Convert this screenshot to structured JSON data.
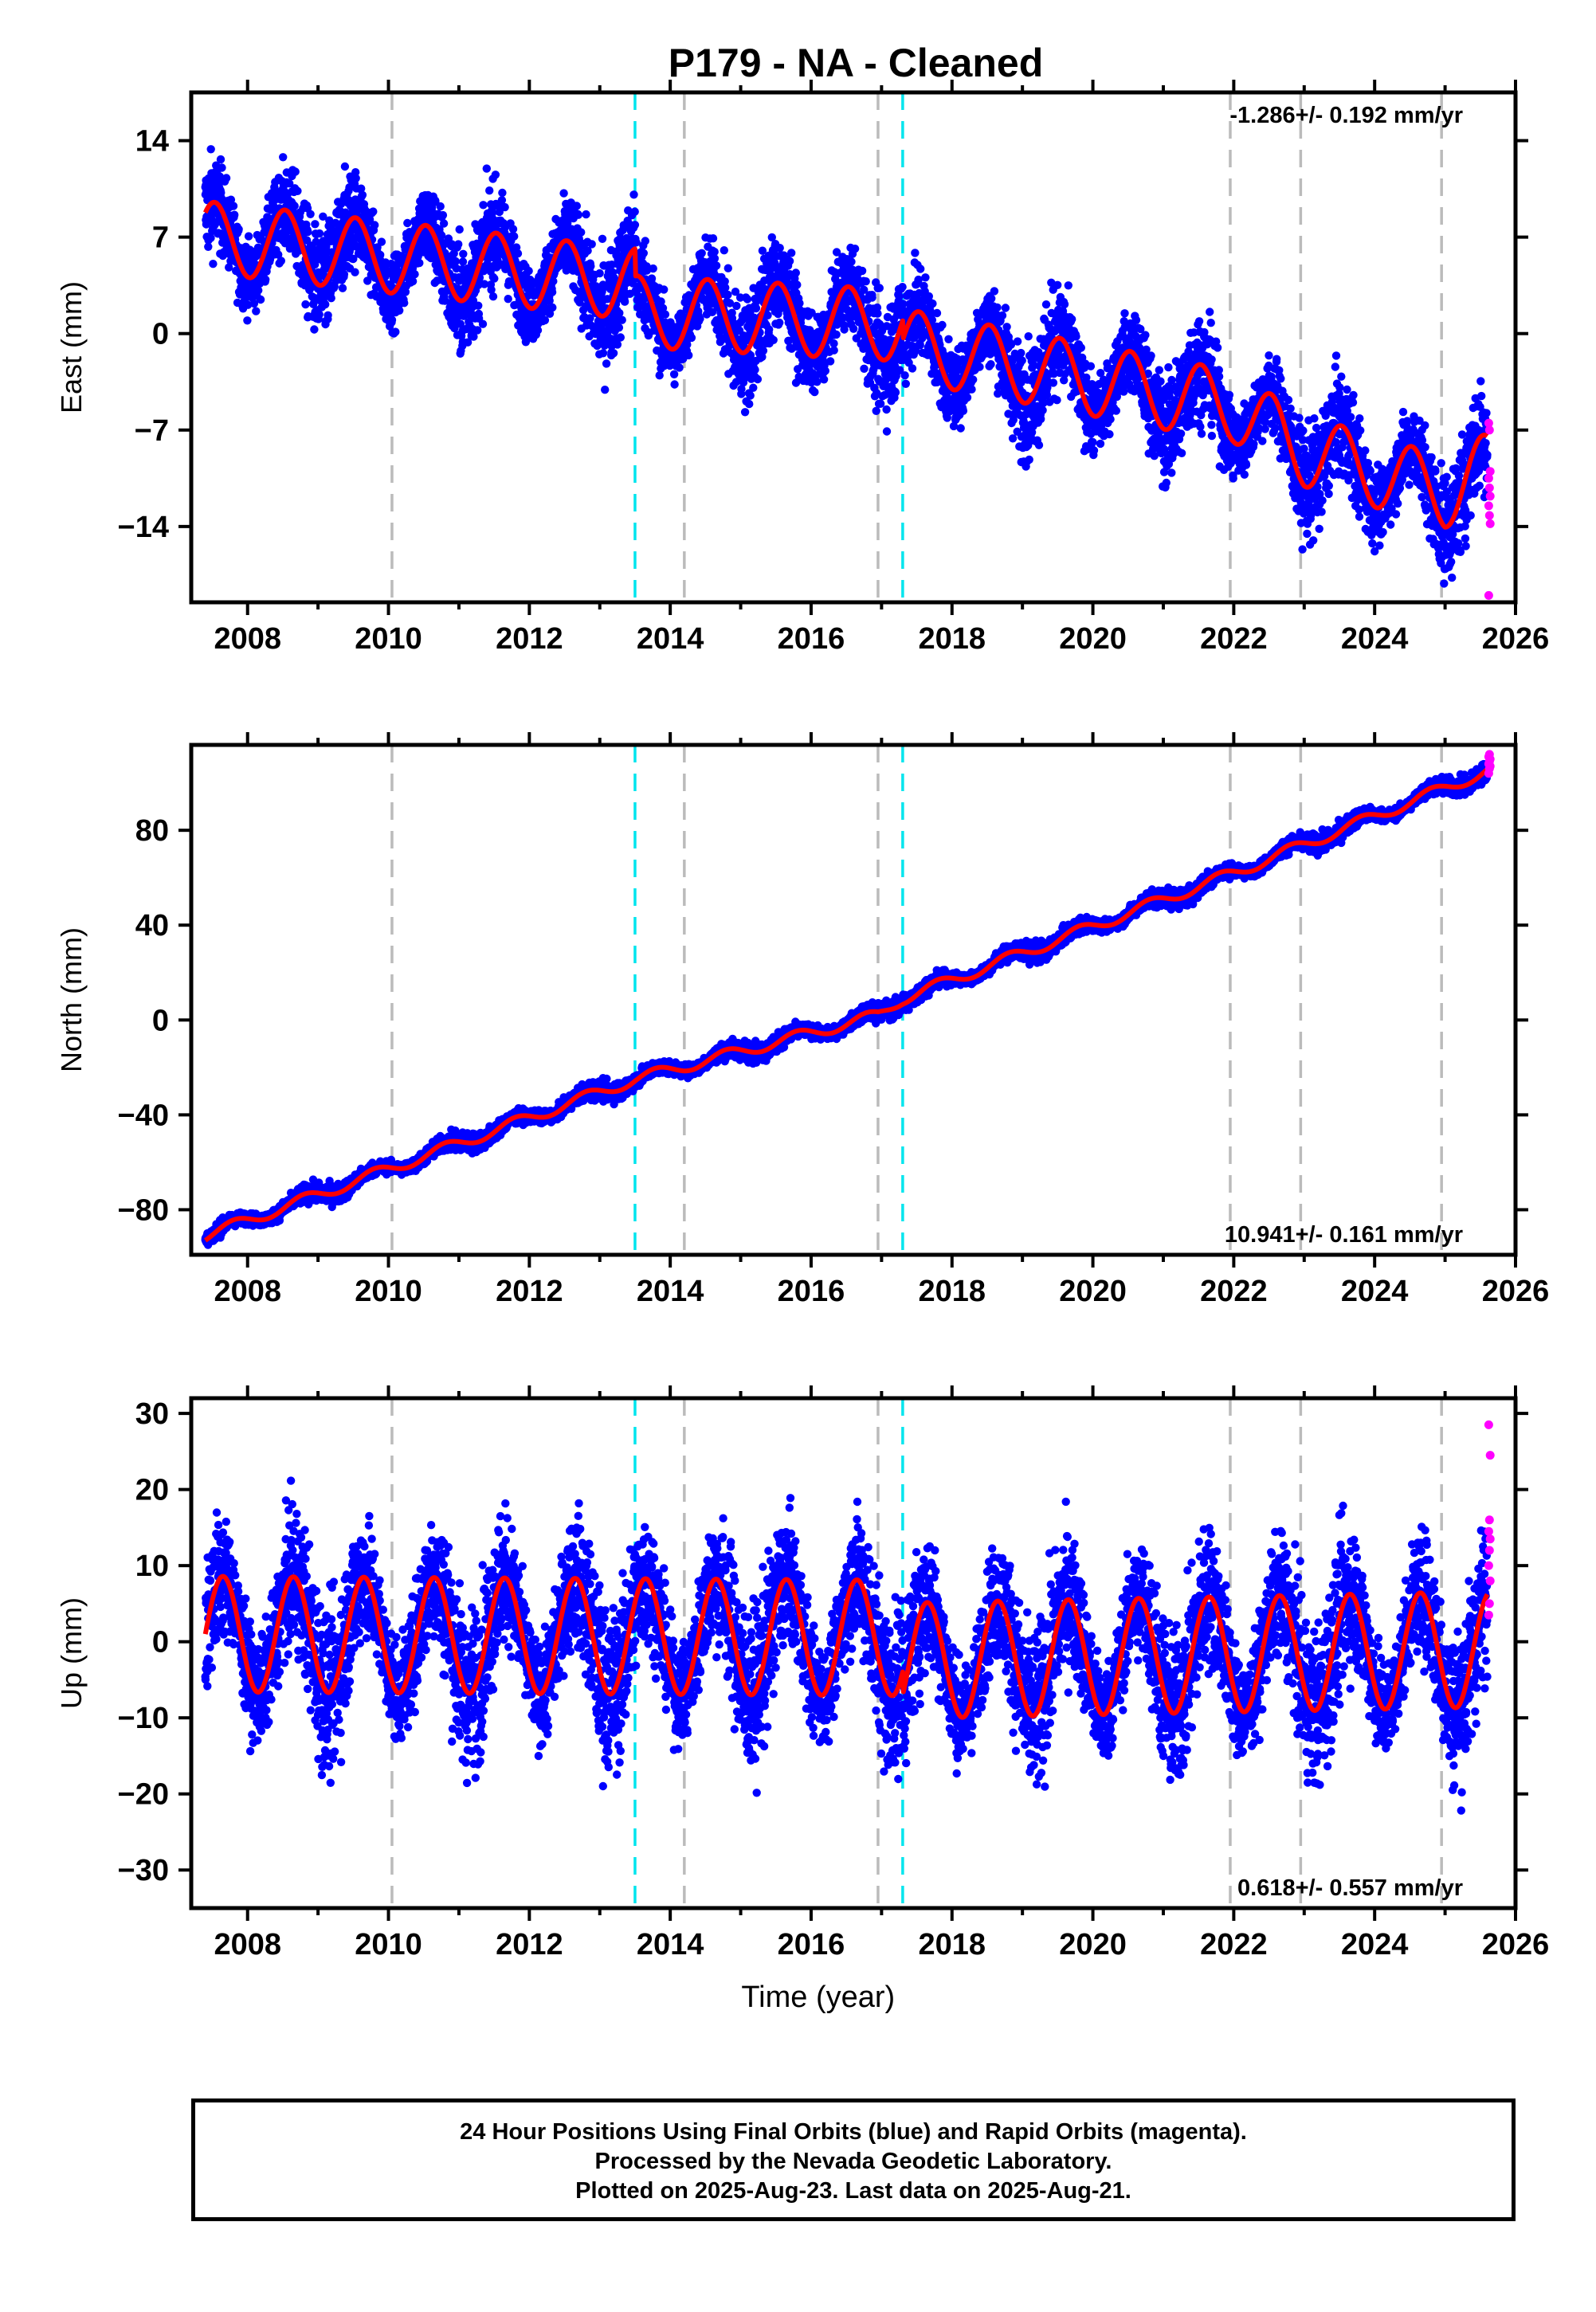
{
  "title": "P179  - NA - Cleaned",
  "colors": {
    "final_orbits": "#0000ff",
    "rapid_orbits": "#ff00ff",
    "model_fit": "#ff0000",
    "gray_lines": "#bbbbbb",
    "cyan_lines": "#00e5ee"
  },
  "chart_data": [
    {
      "type": "scatter",
      "panel": "east",
      "ylabel": "East (mm)",
      "xlabel": "",
      "xlim": [
        2007.2,
        2026.0
      ],
      "ylim": [
        -19.5,
        17.5
      ],
      "xticks": [
        2008,
        2010,
        2012,
        2014,
        2016,
        2018,
        2020,
        2022,
        2024,
        2026
      ],
      "yticks": [
        14,
        7,
        0,
        -7,
        -14
      ],
      "ytick_labels": [
        "14",
        "7",
        "0",
        "−7",
        "−14"
      ],
      "rate_label": "-1.286+/- 0.192 mm/yr",
      "rate_position": "top-right",
      "gray_dashed_lines": [
        2010.05,
        2014.2,
        2016.95,
        2021.95,
        2022.95,
        2024.95
      ],
      "cyan_dashed_lines": [
        2013.5,
        2017.3
      ],
      "model": {
        "start": 2007.4,
        "end": 2025.6,
        "anchors": [
          [
            2007.4,
            7.0
          ],
          [
            2013.5,
            3.6
          ],
          [
            2013.51,
            1.6
          ],
          [
            2017.3,
            0.6
          ],
          [
            2017.31,
            -0.8
          ],
          [
            2022.0,
            -5.3
          ],
          [
            2023.0,
            -8.5
          ],
          [
            2025.0,
            -11.5
          ],
          [
            2025.6,
            -9.8
          ]
        ],
        "amplitude": 2.6,
        "phase": 0.28,
        "noise": 1.6
      },
      "rapid_values": [
        -6.5,
        -7.0,
        -10.0,
        -10.5,
        -11.2,
        -11.8,
        -12.5,
        -13.2,
        -13.8,
        -19.0
      ]
    },
    {
      "type": "scatter",
      "panel": "north",
      "ylabel": "North (mm)",
      "xlabel": "",
      "xlim": [
        2007.2,
        2026.0
      ],
      "ylim": [
        -99,
        116
      ],
      "xticks": [
        2008,
        2010,
        2012,
        2014,
        2016,
        2018,
        2020,
        2022,
        2024,
        2026
      ],
      "yticks": [
        80,
        40,
        0,
        -40,
        -80
      ],
      "ytick_labels": [
        "80",
        "40",
        "0",
        "−40",
        "−80"
      ],
      "rate_label": "10.941+/- 0.161 mm/yr",
      "rate_position": "bottom-right",
      "gray_dashed_lines": [
        2010.05,
        2014.2,
        2016.95,
        2021.95,
        2022.95,
        2024.95
      ],
      "cyan_dashed_lines": [
        2013.5,
        2017.3
      ],
      "model": {
        "start": 2007.4,
        "end": 2025.6,
        "anchors": [
          [
            2007.4,
            -91.0
          ],
          [
            2013.5,
            -25.0
          ],
          [
            2016.95,
            2.0
          ],
          [
            2017.3,
            9.0
          ],
          [
            2022.0,
            62.0
          ],
          [
            2025.6,
            105.0
          ]
        ],
        "amplitude": 2.4,
        "phase": 0.55,
        "noise": 1.6
      },
      "rapid_values": [
        104,
        106,
        107,
        108,
        109,
        110,
        111,
        112
      ]
    },
    {
      "type": "scatter",
      "panel": "up",
      "ylabel": "Up (mm)",
      "xlabel": "Time (year)",
      "xlim": [
        2007.2,
        2026.0
      ],
      "ylim": [
        -35,
        32
      ],
      "xticks": [
        2008,
        2010,
        2012,
        2014,
        2016,
        2018,
        2020,
        2022,
        2024,
        2026
      ],
      "yticks": [
        30,
        20,
        10,
        0,
        -10,
        -20,
        -30
      ],
      "ytick_labels": [
        "30",
        "20",
        "10",
        "0",
        "−10",
        "−20",
        "−30"
      ],
      "rate_label": "0.618+/- 0.557 mm/yr",
      "rate_position": "bottom-right",
      "gray_dashed_lines": [
        2010.05,
        2014.2,
        2016.95,
        2021.95,
        2022.95,
        2024.95
      ],
      "cyan_dashed_lines": [
        2013.5,
        2017.3
      ],
      "model": {
        "start": 2007.4,
        "end": 2025.6,
        "anchors": [
          [
            2007.4,
            1.0
          ],
          [
            2017.3,
            0.5
          ],
          [
            2017.31,
            -2.5
          ],
          [
            2025.6,
            -1.0
          ]
        ],
        "amplitude": 7.6,
        "phase": 0.4,
        "noise": 4.2
      },
      "rapid_values": [
        3.5,
        5.0,
        8.0,
        10.0,
        12.0,
        13.5,
        14.5,
        16.0,
        24.5,
        28.5
      ]
    }
  ],
  "footer": {
    "line1": "24 Hour Positions Using Final Orbits (blue) and Rapid Orbits (magenta).",
    "line2": "Processed by the Nevada Geodetic Laboratory.",
    "line3": "Plotted on 2025-Aug-23. Last data on 2025-Aug-21."
  }
}
